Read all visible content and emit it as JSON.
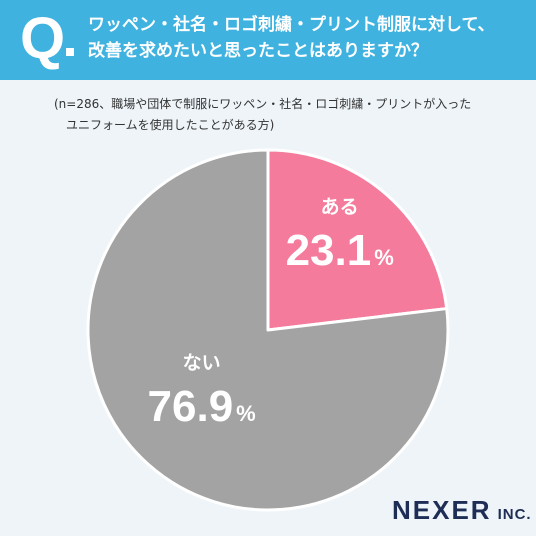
{
  "header": {
    "q_letter": "Q",
    "question_lines": [
      "ワッペン・社名・ロゴ刺繍・プリント制服に対して、",
      "改善を求めたいと思ったことはありますか？"
    ]
  },
  "note": {
    "lines": [
      "(n=286、職場や団体で制服にワッペン・社名・ロゴ刺繍・プリントが入った",
      "ユニフォームを使用したことがある方)"
    ]
  },
  "brand": {
    "main": "NEXER",
    "sub": "INC."
  },
  "colors": {
    "header": "#3fb2df",
    "background": "#eef4f8",
    "slice_yes": "#f47b9b",
    "slice_no": "#a3a3a3",
    "brand": "#1e2d55"
  },
  "chart_data": {
    "type": "pie",
    "title": "ワッペン・社名・ロゴ刺繍・プリント制服に対して、改善を求めたいと思ったことはありますか？",
    "n": 286,
    "unit": "%",
    "start": "12 o'clock, clockwise",
    "slices": [
      {
        "label": "ある",
        "value": 23.1,
        "value_text": "23.1",
        "color": "#f47b9b"
      },
      {
        "label": "ない",
        "value": 76.9,
        "value_text": "76.9",
        "color": "#a3a3a3"
      }
    ]
  }
}
